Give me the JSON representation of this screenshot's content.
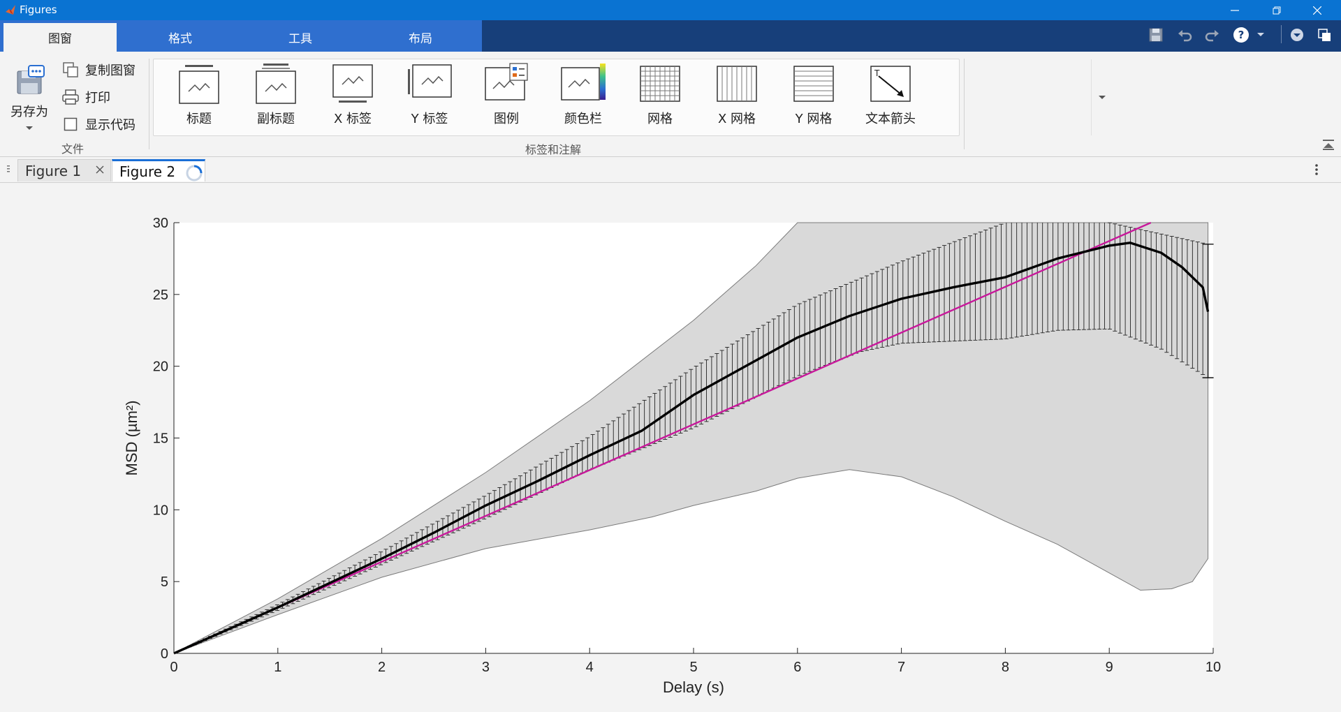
{
  "window": {
    "title": "Figures",
    "controls": [
      "minimize-icon",
      "restore-icon",
      "close-icon"
    ]
  },
  "ribbon_tabs": [
    {
      "label": "图窗",
      "active": true
    },
    {
      "label": "格式",
      "active": false
    },
    {
      "label": "工具",
      "active": false
    },
    {
      "label": "布局",
      "active": false
    }
  ],
  "quick_access": [
    "save-icon",
    "undo-icon",
    "redo-icon",
    "help-icon",
    "dropdown-icon",
    "toggle-icon",
    "undock-icon"
  ],
  "file_section": {
    "save_as_label": "另存为",
    "copy_figure_label": "复制图窗",
    "print_label": "打印",
    "show_code_label": "显示代码",
    "show_code_checked": false,
    "section_label": "文件"
  },
  "annotate_section": {
    "items": [
      {
        "label": "标题",
        "icon": "title-icon"
      },
      {
        "label": "副标题",
        "icon": "subtitle-icon"
      },
      {
        "label": "X 标签",
        "icon": "x-label-icon"
      },
      {
        "label": "Y 标签",
        "icon": "y-label-icon"
      },
      {
        "label": "图例",
        "icon": "legend-icon"
      },
      {
        "label": "颜色栏",
        "icon": "colorbar-icon"
      },
      {
        "label": "网格",
        "icon": "grid-icon"
      },
      {
        "label": "X 网格",
        "icon": "x-grid-icon"
      },
      {
        "label": "Y 网格",
        "icon": "y-grid-icon"
      },
      {
        "label": "文本箭头",
        "icon": "text-arrow-icon"
      }
    ],
    "section_label": "标签和注解"
  },
  "figure_tabs": [
    {
      "label": "Figure 1",
      "active": false
    },
    {
      "label": "Figure 2",
      "active": true
    }
  ],
  "colors": {
    "titlebar": "#0a73d2",
    "tabstrip": "#173f7a",
    "fit_line": "#c8189b",
    "band": "#d9d9d9",
    "mean_line": "#000000"
  },
  "chart_data": {
    "type": "line",
    "title": "",
    "xlabel": "Delay (s)",
    "ylabel": "MSD  (µm²)",
    "xlim": [
      0,
      10
    ],
    "ylim": [
      0,
      30
    ],
    "xticks": [
      0,
      1,
      2,
      3,
      4,
      5,
      6,
      7,
      8,
      9,
      10
    ],
    "yticks": [
      0,
      5,
      10,
      15,
      20,
      25,
      30
    ],
    "grid": false,
    "series": [
      {
        "kind": "mean",
        "x": [
          0,
          0.5,
          1,
          1.5,
          2,
          2.5,
          3,
          3.5,
          4,
          4.5,
          5,
          5.5,
          6,
          6.5,
          7,
          7.5,
          8,
          8.5,
          9,
          9.2,
          9.5,
          9.7,
          9.9,
          9.95
        ],
        "y": [
          0,
          1.6,
          3.2,
          4.9,
          6.6,
          8.4,
          10.3,
          12.0,
          13.8,
          15.5,
          18.0,
          20.0,
          22.0,
          23.5,
          24.7,
          25.5,
          26.2,
          27.5,
          28.4,
          28.6,
          27.9,
          26.9,
          25.5,
          23.8
        ]
      },
      {
        "kind": "fit",
        "x": [
          0,
          9.4
        ],
        "y": [
          0,
          30
        ]
      },
      {
        "kind": "error_upper",
        "x": [
          0,
          1,
          2,
          3,
          4,
          5,
          6,
          7,
          8,
          9,
          9.95
        ],
        "y": [
          0,
          3.4,
          7.1,
          11.0,
          15.1,
          19.9,
          24.3,
          27.3,
          30,
          30,
          28.5
        ]
      },
      {
        "kind": "error_lower",
        "x": [
          0,
          1,
          2,
          3,
          4,
          5,
          6,
          6.6,
          7,
          8,
          8.5,
          9,
          9.5,
          9.95
        ],
        "y": [
          0,
          3.0,
          6.2,
          9.4,
          12.8,
          15.7,
          19.3,
          21.0,
          21.6,
          21.9,
          22.5,
          22.6,
          21.2,
          19.2
        ]
      },
      {
        "kind": "band_upper",
        "x": [
          0,
          1,
          2,
          3,
          4,
          5,
          5.6,
          6,
          10
        ],
        "y": [
          0,
          3.8,
          8.0,
          12.6,
          17.6,
          23.2,
          27.0,
          30,
          30
        ]
      },
      {
        "kind": "band_lower",
        "x": [
          0,
          1,
          2,
          3,
          4,
          4.6,
          5,
          5.6,
          6,
          6.5,
          7,
          7.5,
          8,
          8.5,
          9,
          9.3,
          9.6,
          9.8,
          9.95
        ],
        "y": [
          0,
          2.7,
          5.3,
          7.3,
          8.6,
          9.5,
          10.3,
          11.3,
          12.2,
          12.8,
          12.3,
          10.9,
          9.2,
          7.6,
          5.6,
          4.4,
          4.5,
          5.0,
          6.6
        ]
      }
    ]
  }
}
